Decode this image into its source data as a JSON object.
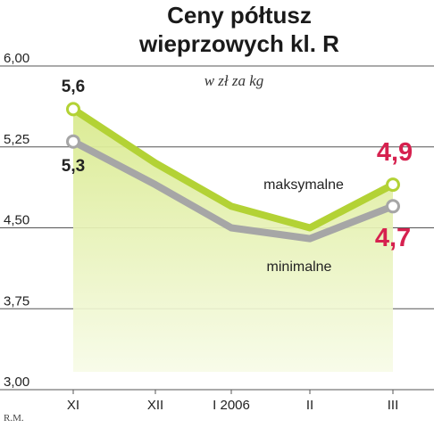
{
  "chart_data": {
    "type": "line",
    "title_line1": "Ceny półtusz",
    "title_line2": "wieprzowych kl. R",
    "unit": "w zł za kg",
    "categories": [
      "XI",
      "XII",
      "I 2006",
      "II",
      "III"
    ],
    "ylim": [
      3.0,
      6.0
    ],
    "yticks": [
      "3,00",
      "3,75",
      "4,50",
      "5,25",
      "6,00"
    ],
    "ytick_values": [
      3.0,
      3.75,
      4.5,
      5.25,
      6.0
    ],
    "series": [
      {
        "name": "maksymalne",
        "values": [
          5.6,
          5.1,
          4.7,
          4.5,
          4.9
        ],
        "color": "#b3d235"
      },
      {
        "name": "minimalne",
        "values": [
          5.3,
          4.9,
          4.5,
          4.4,
          4.7
        ],
        "color": "#a6a6a6"
      }
    ],
    "data_labels": {
      "max_first": "5,6",
      "min_first": "5,3",
      "max_last": "4,9",
      "min_last": "4,7"
    },
    "grid": true,
    "fill_color": "#e3efb5",
    "accent_color": "#d6214f"
  },
  "credit": "R.M."
}
